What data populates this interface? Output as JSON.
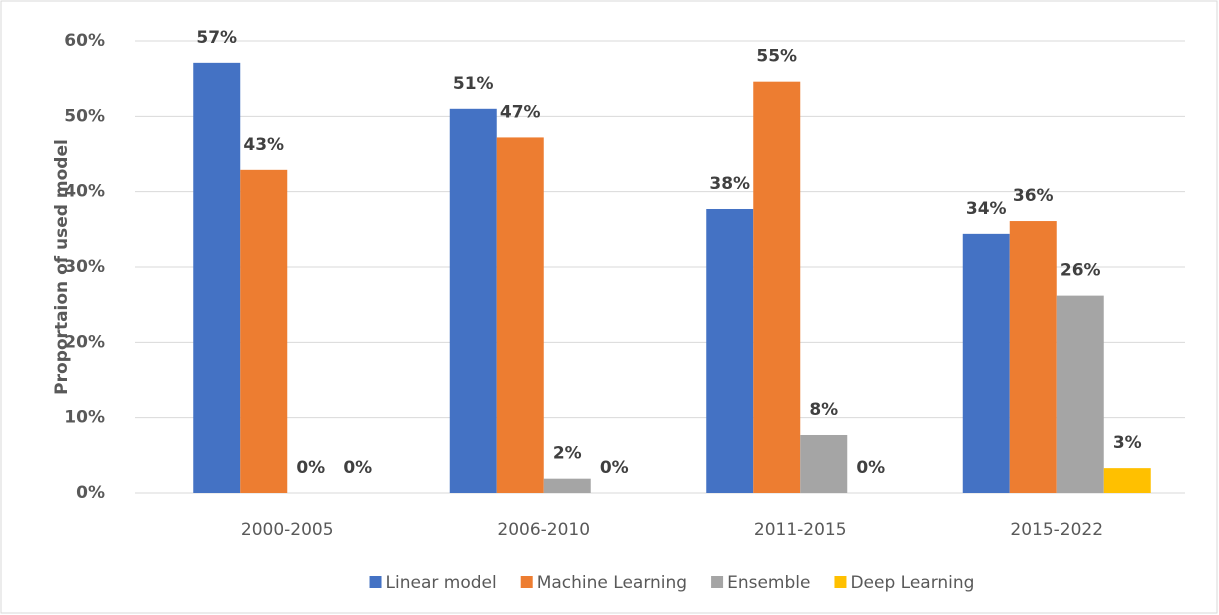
{
  "chart_data": {
    "type": "bar",
    "y_label": "Proportaion of used model",
    "categories": [
      "2000-2005",
      "2006-2010",
      "2011-2015",
      "2015-2022"
    ],
    "series": [
      {
        "name": "Linear model",
        "color": "#4472c4",
        "values": [
          57.1,
          51,
          37.7,
          34.4
        ],
        "value_labels": [
          "57%",
          "51%",
          "38%",
          "34%"
        ]
      },
      {
        "name": "Machine Learning",
        "color": "#ed7d31",
        "values": [
          42.9,
          47.2,
          54.6,
          36.1
        ],
        "value_labels": [
          "43%",
          "47%",
          "55%",
          "36%"
        ]
      },
      {
        "name": "Ensemble",
        "color": "#a5a5a5",
        "values": [
          0,
          1.9,
          7.7,
          26.2
        ],
        "value_labels": [
          "0%",
          "2%",
          "8%",
          "26%"
        ]
      },
      {
        "name": "Deep Learning",
        "color": "#ffc000",
        "values": [
          0,
          0,
          0,
          3.3
        ],
        "value_labels": [
          "0%",
          "0%",
          "0%",
          "3%"
        ]
      }
    ],
    "ylim": [
      0,
      60
    ],
    "yticks": [
      {
        "value": 0,
        "label": "0%"
      },
      {
        "value": 10,
        "label": "10%"
      },
      {
        "value": 20,
        "label": "20%"
      },
      {
        "value": 30,
        "label": "30%"
      },
      {
        "value": 40,
        "label": "40%"
      },
      {
        "value": 50,
        "label": "50%"
      },
      {
        "value": 60,
        "label": "60%"
      }
    ],
    "grid": true,
    "legend": "bottom"
  }
}
